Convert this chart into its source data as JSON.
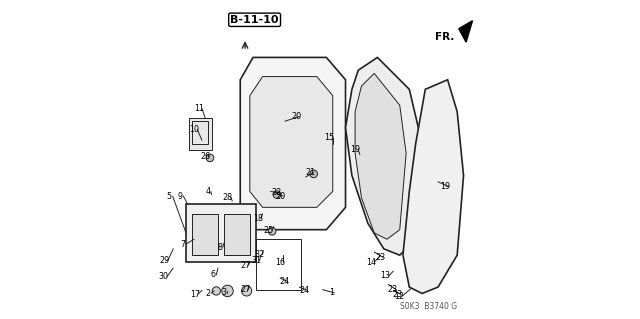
{
  "title": "B-11-10",
  "part_code": "S0K3  B3740 G",
  "direction_label": "FR.",
  "background_color": "#ffffff",
  "diagram_color": "#222222",
  "figsize": [
    6.4,
    3.19
  ],
  "dpi": 100
}
